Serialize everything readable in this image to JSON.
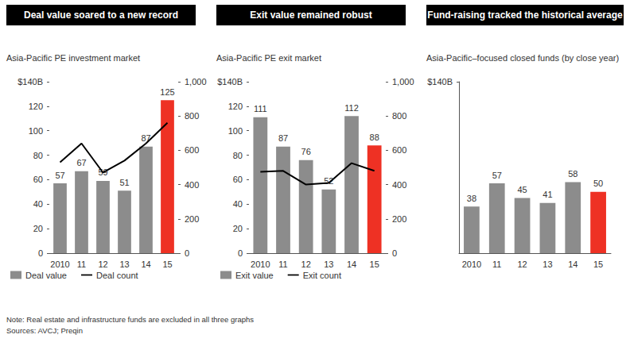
{
  "chart_data": [
    {
      "type": "bar",
      "title": "Deal value soared to a new record",
      "subtitle": "Asia-Pacific PE investment market",
      "categories": [
        "2010",
        "11",
        "12",
        "13",
        "14",
        "15"
      ],
      "series": [
        {
          "name": "Deal value",
          "type": "bar",
          "color": "#8c8c8c",
          "colors": [
            "#8c8c8c",
            "#8c8c8c",
            "#8c8c8c",
            "#8c8c8c",
            "#8c8c8c",
            "#ee3124"
          ],
          "values": [
            57,
            67,
            59,
            51,
            87,
            125
          ]
        },
        {
          "name": "Deal count",
          "type": "line",
          "color": "#000000",
          "axis": "y2",
          "marker": "none",
          "line_style": "solid",
          "values": [
            530,
            640,
            470,
            540,
            640,
            760
          ]
        }
      ],
      "ylim": [
        0,
        140
      ],
      "yticks": [
        0,
        20,
        40,
        60,
        80,
        100,
        120,
        {
          "value": 140,
          "label": "$140B"
        }
      ],
      "y2lim": [
        0,
        1000
      ],
      "y2ticks": [
        0,
        200,
        400,
        600,
        800,
        {
          "value": 1000,
          "label": "1,000"
        }
      ],
      "data_labels": true,
      "legend": "bottom",
      "grid": false
    },
    {
      "type": "bar",
      "title": "Exit value remained robust",
      "subtitle": "Asia-Pacific PE exit market",
      "categories": [
        "2010",
        "11",
        "12",
        "13",
        "14",
        "15"
      ],
      "series": [
        {
          "name": "Exit value",
          "type": "bar",
          "color": "#8c8c8c",
          "colors": [
            "#8c8c8c",
            "#8c8c8c",
            "#8c8c8c",
            "#8c8c8c",
            "#8c8c8c",
            "#ee3124"
          ],
          "values": [
            111,
            87,
            76,
            52,
            112,
            88
          ]
        },
        {
          "name": "Exit count",
          "type": "line",
          "color": "#000000",
          "axis": "y2",
          "marker": "none",
          "line_style": "solid",
          "values": [
            475,
            480,
            400,
            410,
            525,
            480
          ]
        }
      ],
      "ylim": [
        0,
        140
      ],
      "yticks": [
        0,
        20,
        40,
        60,
        80,
        100,
        120,
        {
          "value": 140,
          "label": "$140B"
        }
      ],
      "y2lim": [
        0,
        1000
      ],
      "y2ticks": [
        0,
        200,
        400,
        600,
        800,
        {
          "value": 1000,
          "label": "1,000"
        }
      ],
      "data_labels": true,
      "legend": "bottom",
      "grid": false
    },
    {
      "type": "bar",
      "title": "Fund-raising tracked the historical average",
      "subtitle": "Asia-Pacific–focused closed funds (by close year)",
      "categories": [
        "2010",
        "11",
        "12",
        "13",
        "14",
        "15"
      ],
      "values": [
        38,
        57,
        45,
        41,
        58,
        50
      ],
      "color": "#8c8c8c",
      "colors": [
        "#8c8c8c",
        "#8c8c8c",
        "#8c8c8c",
        "#8c8c8c",
        "#8c8c8c",
        "#ee3124"
      ],
      "ylim": [
        0,
        140
      ],
      "yticks": [
        {
          "value": 140,
          "label": "$140B"
        }
      ],
      "data_labels": true,
      "grid": false
    }
  ],
  "notes": [
    "Note: Real estate and infrastructure funds are excluded in all three graphs",
    "Sources: AVCJ; Preqin"
  ]
}
